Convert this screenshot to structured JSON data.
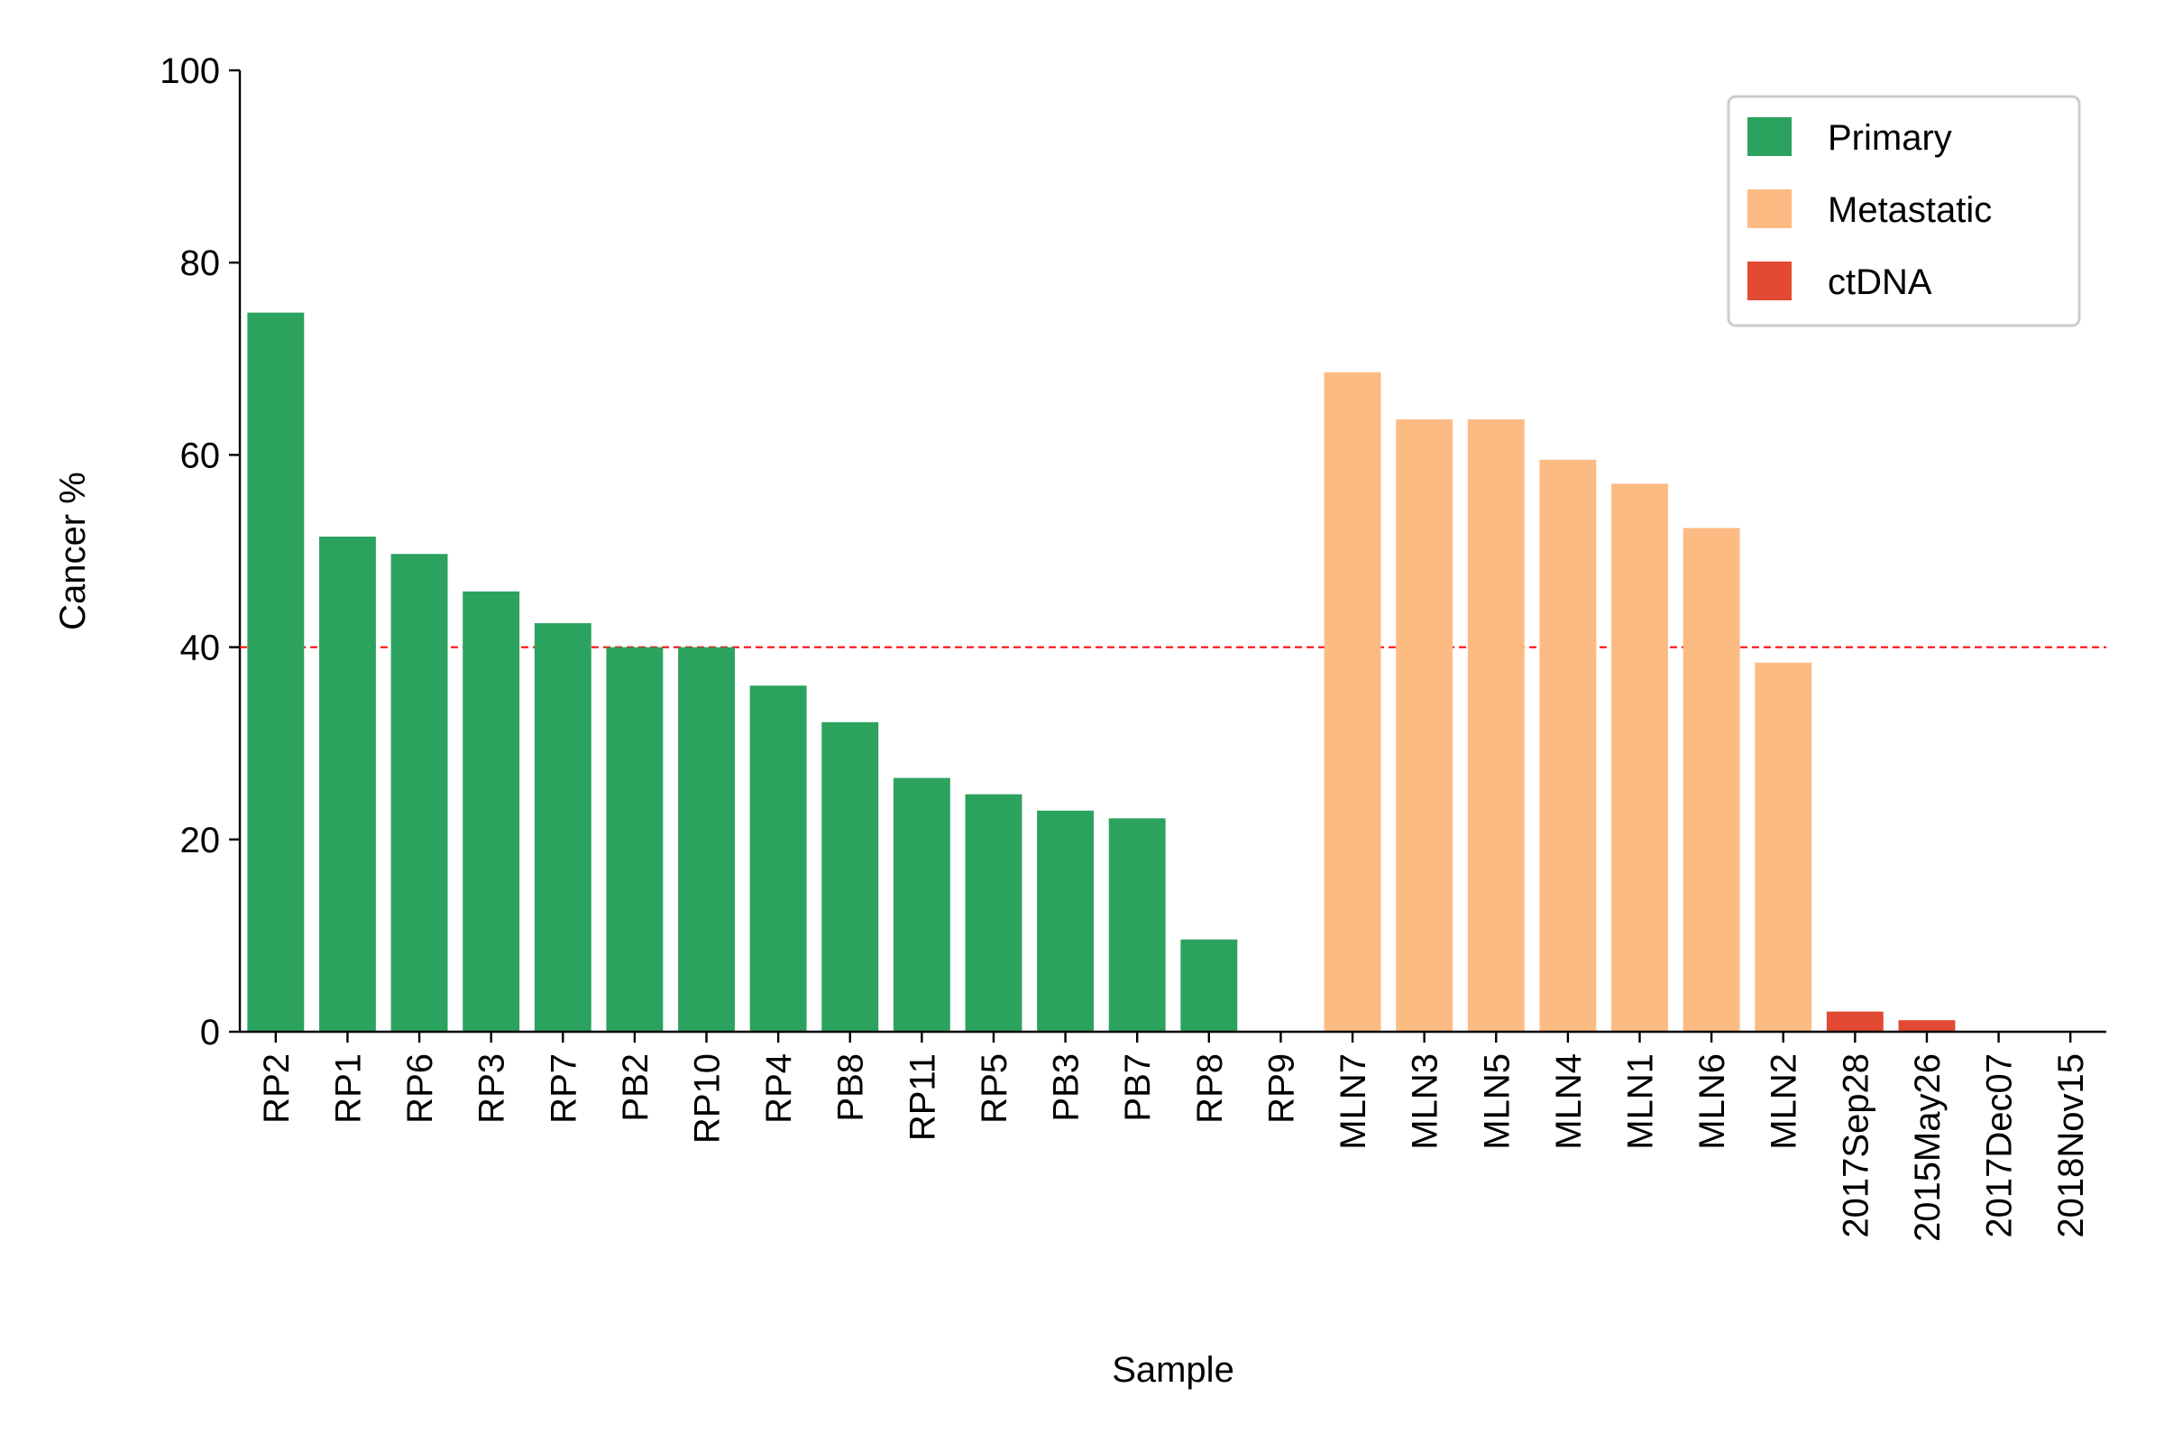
{
  "chart_data": {
    "type": "bar",
    "title": "",
    "xlabel": "Sample",
    "ylabel": "Cancer %",
    "ylim": [
      0,
      100
    ],
    "yticks": [
      0,
      20,
      40,
      60,
      80,
      100
    ],
    "threshold": 40,
    "threshold_color": "#ff0000",
    "legend_position": "top-right",
    "series": [
      {
        "name": "Primary",
        "color": "#2ca25f",
        "categories": [
          "RP2",
          "RP1",
          "RP6",
          "RP3",
          "RP7",
          "PB2",
          "RP10",
          "RP4",
          "PB8",
          "RP11",
          "RP5",
          "PB3",
          "PB7",
          "RP8",
          "RP9"
        ],
        "values": [
          74.8,
          51.5,
          49.7,
          45.8,
          42.5,
          40.0,
          40.0,
          36.0,
          32.2,
          26.4,
          24.7,
          23.0,
          22.2,
          9.6,
          0
        ]
      },
      {
        "name": "Metastatic",
        "color": "#fdbb84",
        "categories": [
          "MLN7",
          "MLN3",
          "MLN5",
          "MLN4",
          "MLN1",
          "MLN6",
          "MLN2"
        ],
        "values": [
          68.6,
          63.7,
          63.7,
          59.5,
          57.0,
          52.4,
          38.4
        ]
      },
      {
        "name": "ctDNA",
        "color": "#e34a33",
        "categories": [
          "2017Sep28",
          "2015May26",
          "2017Dec07",
          "2018Nov15"
        ],
        "values": [
          2.1,
          1.2,
          0,
          0
        ]
      }
    ]
  }
}
